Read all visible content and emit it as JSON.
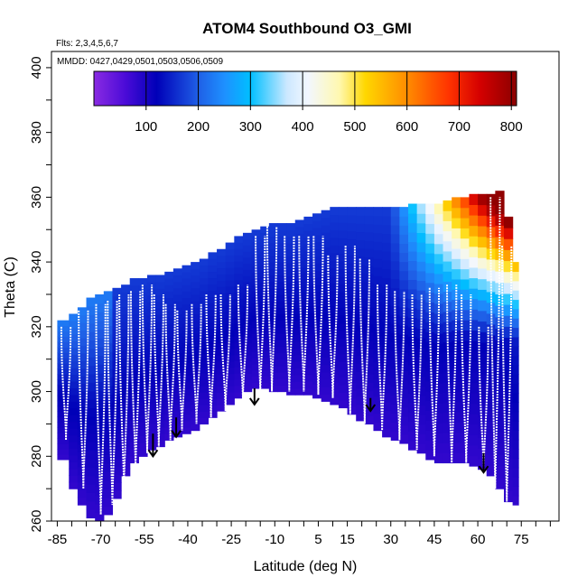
{
  "chart_data": {
    "type": "heatmap",
    "title": "ATOM4 Southbound O3_GMI",
    "subtitle_flights": "Flts: 2,3,4,5,6,7",
    "subtitle_dates": "MMDD: 0427,0429,0501,0503,0506,0509",
    "xlabel": "Latitude (deg N)",
    "ylabel": "Theta (C)",
    "xlim": [
      -87,
      88
    ],
    "ylim": [
      260,
      405
    ],
    "x_ticks_labeled": [
      -85,
      -70,
      -55,
      -40,
      -25,
      -10,
      5,
      15,
      30,
      45,
      60,
      75
    ],
    "x_tick_labels": [
      "-85",
      "-70",
      "-55",
      "-40",
      "-25",
      "-10",
      "5",
      "15",
      "30",
      "45",
      "60",
      "75"
    ],
    "x_ticks_minor_step": 5,
    "y_ticks": [
      260,
      280,
      300,
      320,
      340,
      360,
      380,
      400
    ],
    "y_tick_labels": [
      "260",
      "280",
      "300",
      "320",
      "340",
      "360",
      "380",
      "400"
    ],
    "colorbar": {
      "range": [
        0,
        810
      ],
      "ticks": [
        100,
        200,
        300,
        400,
        500,
        600,
        700,
        800
      ],
      "tick_labels": [
        "100",
        "200",
        "300",
        "400",
        "500",
        "600",
        "700",
        "800"
      ],
      "stops": [
        {
          "v": 0,
          "c": "#8a2be2"
        },
        {
          "v": 60,
          "c": "#4b0bd8"
        },
        {
          "v": 120,
          "c": "#0000b8"
        },
        {
          "v": 200,
          "c": "#1f5fe6"
        },
        {
          "v": 250,
          "c": "#1e90ff"
        },
        {
          "v": 300,
          "c": "#00bfff"
        },
        {
          "v": 370,
          "c": "#cce8ff"
        },
        {
          "v": 410,
          "c": "#f2f7ff"
        },
        {
          "v": 470,
          "c": "#fff8b0"
        },
        {
          "v": 520,
          "c": "#ffd700"
        },
        {
          "v": 600,
          "c": "#ff8c00"
        },
        {
          "v": 680,
          "c": "#ff3300"
        },
        {
          "v": 740,
          "c": "#d40000"
        },
        {
          "v": 810,
          "c": "#8b0000"
        }
      ]
    },
    "field": {
      "lat_columns": [
        -85,
        -81,
        -78,
        -75,
        -72,
        -69,
        -66,
        -63,
        -60,
        -57,
        -54,
        -51,
        -48,
        -45,
        -42,
        -39,
        -36,
        -33,
        -30,
        -27,
        -24,
        -21,
        -18,
        -15,
        -12,
        -9,
        -6,
        -3,
        0,
        3,
        6,
        9,
        12,
        15,
        18,
        21,
        24,
        27,
        30,
        33,
        36,
        39,
        42,
        45,
        48,
        51,
        54,
        57,
        60,
        63,
        66,
        69,
        72
      ],
      "theta_bottom": [
        279,
        270,
        265,
        261,
        260,
        262,
        267,
        274,
        278,
        280,
        282,
        283,
        285,
        286,
        287,
        288,
        290,
        292,
        294,
        296,
        298,
        300,
        301,
        301,
        300,
        300,
        299,
        299,
        299,
        298,
        297,
        296,
        295,
        293,
        291,
        290,
        288,
        286,
        285,
        284,
        282,
        281,
        279,
        278,
        278,
        278,
        278,
        277,
        276,
        274,
        270,
        266,
        265
      ],
      "theta_top": [
        322,
        324,
        326,
        329,
        330,
        331,
        332,
        333,
        335,
        335,
        336,
        336,
        337,
        338,
        339,
        340,
        341,
        343,
        344,
        346,
        348,
        349,
        350,
        351,
        352,
        352,
        352,
        353,
        354,
        355,
        356,
        357,
        357,
        357,
        357,
        357,
        357,
        357,
        357,
        357,
        358,
        358,
        358,
        358,
        359,
        360,
        360,
        361,
        361,
        361,
        362,
        354,
        340
      ],
      "note": "approximate reconstruction of color field values (ppbv)"
    },
    "flight_profiles": [
      {
        "lat": -82,
        "bottom": 285,
        "top": 320
      },
      {
        "lat": -76,
        "bottom": 270,
        "top": 325
      },
      {
        "lat": -70,
        "bottom": 262,
        "top": 327
      },
      {
        "lat": -66,
        "bottom": 265,
        "top": 328
      },
      {
        "lat": -62,
        "bottom": 270,
        "top": 330
      },
      {
        "lat": -58,
        "bottom": 276,
        "top": 331
      },
      {
        "lat": -54,
        "bottom": 281,
        "top": 333
      },
      {
        "lat": -50,
        "bottom": 283,
        "top": 330
      },
      {
        "lat": -46,
        "bottom": 285,
        "top": 327
      },
      {
        "lat": -42,
        "bottom": 288,
        "top": 325
      },
      {
        "lat": -37,
        "bottom": 290,
        "top": 327
      },
      {
        "lat": -32,
        "bottom": 292,
        "top": 330
      },
      {
        "lat": -27,
        "bottom": 294,
        "top": 330
      },
      {
        "lat": -21,
        "bottom": 297,
        "top": 333
      },
      {
        "lat": -15,
        "bottom": 299,
        "top": 348
      },
      {
        "lat": -11,
        "bottom": 300,
        "top": 351
      },
      {
        "lat": -5,
        "bottom": 300,
        "top": 348
      },
      {
        "lat": 0,
        "bottom": 300,
        "top": 348
      },
      {
        "lat": 5,
        "bottom": 299,
        "top": 348
      },
      {
        "lat": 10,
        "bottom": 298,
        "top": 342
      },
      {
        "lat": 16,
        "bottom": 293,
        "top": 345
      },
      {
        "lat": 21,
        "bottom": 290,
        "top": 341
      },
      {
        "lat": 27,
        "bottom": 288,
        "top": 333
      },
      {
        "lat": 33,
        "bottom": 285,
        "top": 331
      },
      {
        "lat": 39,
        "bottom": 282,
        "top": 330
      },
      {
        "lat": 45,
        "bottom": 280,
        "top": 332
      },
      {
        "lat": 51,
        "bottom": 278,
        "top": 333
      },
      {
        "lat": 56,
        "bottom": 278,
        "top": 330
      },
      {
        "lat": 62,
        "bottom": 275,
        "top": 320
      },
      {
        "lat": 66,
        "bottom": 270,
        "top": 360
      },
      {
        "lat": 70,
        "bottom": 266,
        "top": 345
      }
    ],
    "arrows": [
      {
        "lat": -52,
        "theta_start": 287,
        "theta_end": 280
      },
      {
        "lat": -44,
        "theta_start": 292,
        "theta_end": 286
      },
      {
        "lat": -17,
        "theta_start": 301,
        "theta_end": 296
      },
      {
        "lat": 23,
        "theta_start": 298,
        "theta_end": 294
      },
      {
        "lat": 62,
        "theta_start": 281,
        "theta_end": 275
      }
    ]
  }
}
